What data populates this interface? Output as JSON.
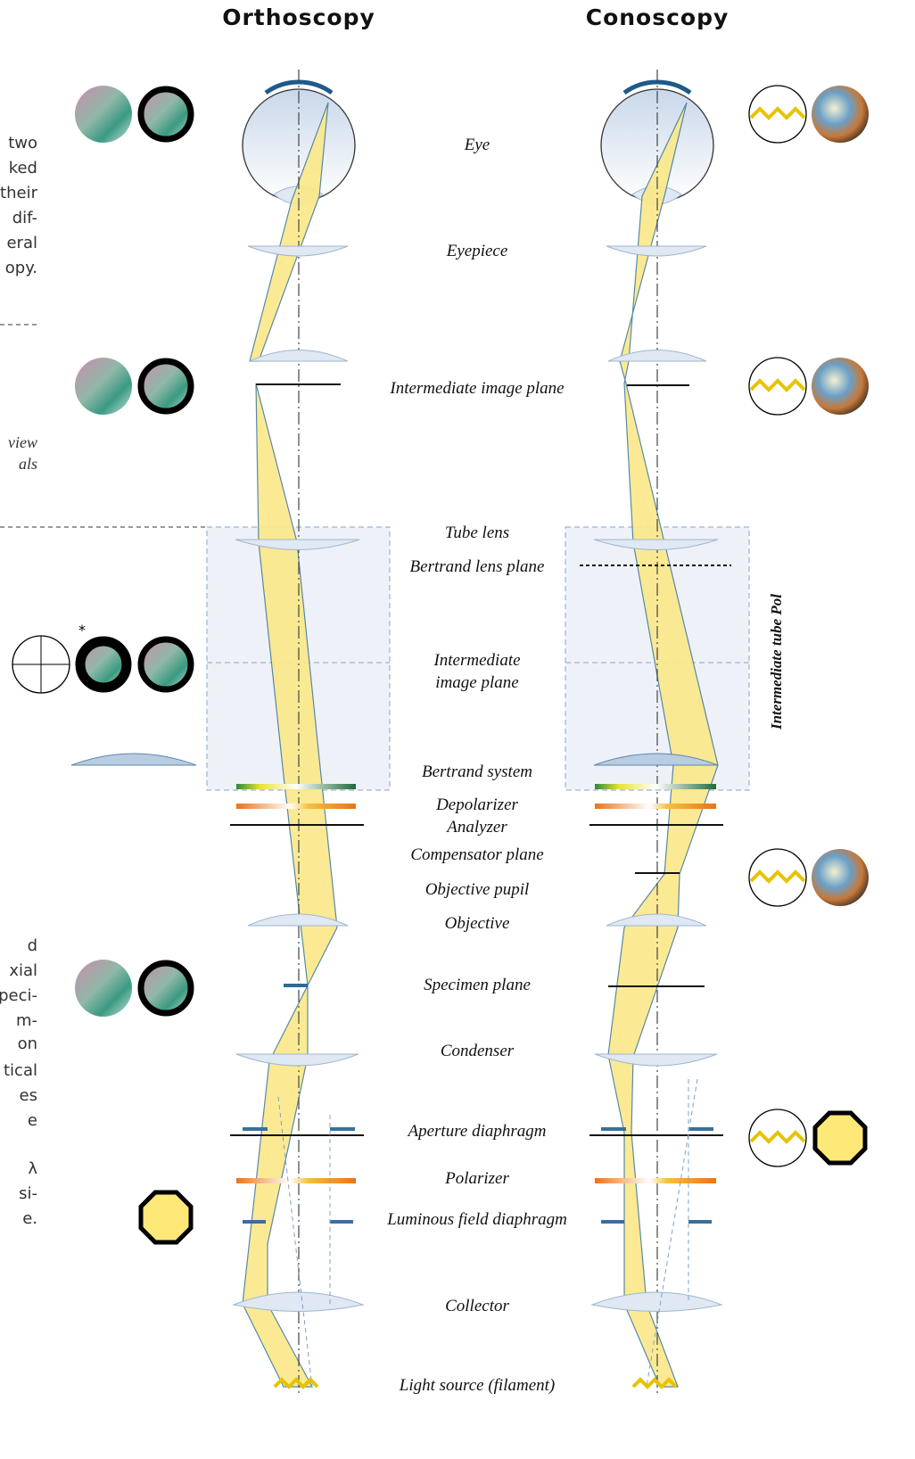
{
  "titles": {
    "ortho": "Orthoscopy",
    "cono": "Conoscopy"
  },
  "labels": [
    "Eye",
    "Eyepiece",
    "Intermediate image plane",
    "Tube lens",
    "Bertrand lens plane",
    "Intermediate",
    "image plane",
    "Bertrand system",
    "Depolarizer",
    "Analyzer",
    "Compensator plane",
    "Objective pupil",
    "Objective",
    "Specimen plane",
    "Condenser",
    "Aperture diaphragm",
    "Polarizer",
    "Luminous field diaphragm",
    "Collector",
    "Light source (filament)"
  ],
  "side_label": "Intermediate tube Pol",
  "asterisk": "*",
  "left_text": {
    "top": [
      "two",
      "ked",
      "their",
      "dif-",
      "eral",
      "opy."
    ],
    "middle": [
      "view",
      "als"
    ],
    "bottom": [
      "d",
      "xial",
      "peci-",
      "m-",
      "on",
      "tical",
      "es",
      "e",
      "λ",
      "si-",
      "e."
    ]
  }
}
